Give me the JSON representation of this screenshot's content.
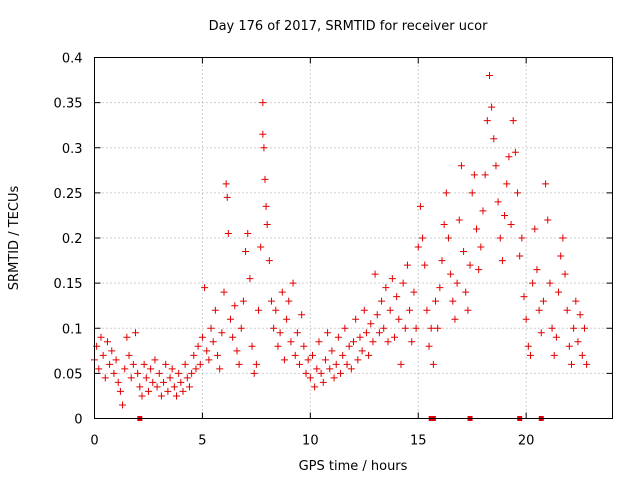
{
  "chart_data": {
    "type": "scatter",
    "title": "Day 176 of 2017, SRMTID for receiver ucor",
    "xlabel": "GPS time / hours",
    "ylabel": "SRMTID / TECUs",
    "xlim": [
      0,
      24
    ],
    "ylim": [
      0,
      0.4
    ],
    "xticks": [
      0,
      5,
      10,
      15,
      20
    ],
    "xtick_labels": [
      "0",
      "5",
      "10",
      "15",
      "20"
    ],
    "yticks": [
      0,
      0.05,
      0.1,
      0.15,
      0.2,
      0.25,
      0.3,
      0.35,
      0.4
    ],
    "ytick_labels": [
      "0",
      "0.05",
      "0.1",
      "0.15",
      "0.2",
      "0.25",
      "0.3",
      "0.35",
      "0.4"
    ],
    "grid": true,
    "marker": "+",
    "color": "#e00000",
    "series": [
      {
        "name": "SRMTID",
        "points": [
          [
            0.0,
            0.065
          ],
          [
            0.1,
            0.08
          ],
          [
            0.2,
            0.055
          ],
          [
            0.3,
            0.09
          ],
          [
            0.4,
            0.07
          ],
          [
            0.5,
            0.045
          ],
          [
            0.6,
            0.085
          ],
          [
            0.7,
            0.06
          ],
          [
            0.8,
            0.075
          ],
          [
            0.9,
            0.05
          ],
          [
            1.0,
            0.065
          ],
          [
            1.1,
            0.04
          ],
          [
            1.2,
            0.03
          ],
          [
            1.3,
            0.015
          ],
          [
            1.4,
            0.055
          ],
          [
            1.5,
            0.09
          ],
          [
            1.6,
            0.07
          ],
          [
            1.7,
            0.045
          ],
          [
            1.8,
            0.06
          ],
          [
            1.9,
            0.095
          ],
          [
            2.0,
            0.05
          ],
          [
            2.1,
            0.035
          ],
          [
            2.2,
            0.025
          ],
          [
            2.3,
            0.06
          ],
          [
            2.4,
            0.045
          ],
          [
            2.5,
            0.03
          ],
          [
            2.6,
            0.055
          ],
          [
            2.7,
            0.04
          ],
          [
            2.8,
            0.065
          ],
          [
            2.9,
            0.035
          ],
          [
            3.0,
            0.05
          ],
          [
            3.1,
            0.025
          ],
          [
            3.2,
            0.04
          ],
          [
            3.3,
            0.06
          ],
          [
            3.4,
            0.03
          ],
          [
            3.5,
            0.045
          ],
          [
            3.6,
            0.055
          ],
          [
            3.7,
            0.035
          ],
          [
            3.8,
            0.025
          ],
          [
            3.9,
            0.05
          ],
          [
            4.0,
            0.04
          ],
          [
            4.1,
            0.03
          ],
          [
            4.2,
            0.06
          ],
          [
            4.3,
            0.045
          ],
          [
            4.4,
            0.035
          ],
          [
            4.5,
            0.05
          ],
          [
            4.6,
            0.07
          ],
          [
            4.7,
            0.055
          ],
          [
            4.8,
            0.08
          ],
          [
            4.9,
            0.06
          ],
          [
            5.0,
            0.09
          ],
          [
            5.1,
            0.145
          ],
          [
            5.2,
            0.075
          ],
          [
            5.3,
            0.065
          ],
          [
            5.4,
            0.1
          ],
          [
            5.5,
            0.085
          ],
          [
            5.6,
            0.12
          ],
          [
            5.7,
            0.07
          ],
          [
            5.8,
            0.055
          ],
          [
            5.9,
            0.095
          ],
          [
            6.0,
            0.14
          ],
          [
            6.1,
            0.26
          ],
          [
            6.15,
            0.245
          ],
          [
            6.2,
            0.205
          ],
          [
            6.3,
            0.11
          ],
          [
            6.4,
            0.09
          ],
          [
            6.5,
            0.125
          ],
          [
            6.6,
            0.075
          ],
          [
            6.7,
            0.06
          ],
          [
            6.8,
            0.1
          ],
          [
            6.9,
            0.13
          ],
          [
            7.0,
            0.185
          ],
          [
            7.1,
            0.205
          ],
          [
            7.2,
            0.155
          ],
          [
            7.3,
            0.08
          ],
          [
            7.4,
            0.05
          ],
          [
            7.5,
            0.06
          ],
          [
            7.6,
            0.12
          ],
          [
            7.7,
            0.19
          ],
          [
            7.8,
            0.35
          ],
          [
            7.8,
            0.315
          ],
          [
            7.85,
            0.3
          ],
          [
            7.9,
            0.265
          ],
          [
            7.95,
            0.235
          ],
          [
            8.0,
            0.215
          ],
          [
            8.1,
            0.175
          ],
          [
            8.2,
            0.13
          ],
          [
            8.3,
            0.1
          ],
          [
            8.4,
            0.12
          ],
          [
            8.5,
            0.08
          ],
          [
            8.6,
            0.095
          ],
          [
            8.7,
            0.14
          ],
          [
            8.8,
            0.065
          ],
          [
            8.9,
            0.11
          ],
          [
            9.0,
            0.13
          ],
          [
            9.1,
            0.085
          ],
          [
            9.2,
            0.15
          ],
          [
            9.3,
            0.07
          ],
          [
            9.4,
            0.095
          ],
          [
            9.5,
            0.06
          ],
          [
            9.6,
            0.115
          ],
          [
            9.7,
            0.08
          ],
          [
            9.8,
            0.05
          ],
          [
            9.9,
            0.065
          ],
          [
            10.0,
            0.045
          ],
          [
            10.1,
            0.07
          ],
          [
            10.2,
            0.035
          ],
          [
            10.3,
            0.055
          ],
          [
            10.4,
            0.085
          ],
          [
            10.5,
            0.05
          ],
          [
            10.6,
            0.04
          ],
          [
            10.7,
            0.065
          ],
          [
            10.8,
            0.095
          ],
          [
            10.9,
            0.055
          ],
          [
            11.0,
            0.075
          ],
          [
            11.1,
            0.045
          ],
          [
            11.2,
            0.06
          ],
          [
            11.3,
            0.09
          ],
          [
            11.4,
            0.05
          ],
          [
            11.5,
            0.07
          ],
          [
            11.6,
            0.1
          ],
          [
            11.7,
            0.06
          ],
          [
            11.8,
            0.08
          ],
          [
            11.9,
            0.055
          ],
          [
            12.0,
            0.085
          ],
          [
            12.1,
            0.11
          ],
          [
            12.2,
            0.065
          ],
          [
            12.3,
            0.09
          ],
          [
            12.4,
            0.075
          ],
          [
            12.5,
            0.12
          ],
          [
            12.6,
            0.095
          ],
          [
            12.7,
            0.07
          ],
          [
            12.8,
            0.105
          ],
          [
            12.9,
            0.085
          ],
          [
            13.0,
            0.16
          ],
          [
            13.1,
            0.115
          ],
          [
            13.2,
            0.095
          ],
          [
            13.3,
            0.13
          ],
          [
            13.4,
            0.1
          ],
          [
            13.5,
            0.145
          ],
          [
            13.6,
            0.085
          ],
          [
            13.7,
            0.12
          ],
          [
            13.8,
            0.155
          ],
          [
            13.9,
            0.09
          ],
          [
            14.0,
            0.135
          ],
          [
            14.1,
            0.11
          ],
          [
            14.2,
            0.06
          ],
          [
            14.3,
            0.15
          ],
          [
            14.4,
            0.1
          ],
          [
            14.5,
            0.17
          ],
          [
            14.6,
            0.12
          ],
          [
            14.7,
            0.085
          ],
          [
            14.8,
            0.14
          ],
          [
            14.9,
            0.1
          ],
          [
            15.0,
            0.19
          ],
          [
            15.1,
            0.235
          ],
          [
            15.2,
            0.2
          ],
          [
            15.3,
            0.17
          ],
          [
            15.4,
            0.12
          ],
          [
            15.5,
            0.08
          ],
          [
            15.6,
            0.1
          ],
          [
            15.7,
            0.06
          ],
          [
            15.8,
            0.13
          ],
          [
            15.9,
            0.1
          ],
          [
            16.0,
            0.145
          ],
          [
            16.1,
            0.175
          ],
          [
            16.2,
            0.215
          ],
          [
            16.3,
            0.25
          ],
          [
            16.4,
            0.2
          ],
          [
            16.5,
            0.16
          ],
          [
            16.6,
            0.13
          ],
          [
            16.7,
            0.11
          ],
          [
            16.8,
            0.15
          ],
          [
            16.9,
            0.22
          ],
          [
            17.0,
            0.28
          ],
          [
            17.1,
            0.185
          ],
          [
            17.2,
            0.14
          ],
          [
            17.3,
            0.12
          ],
          [
            17.4,
            0.17
          ],
          [
            17.5,
            0.25
          ],
          [
            17.6,
            0.27
          ],
          [
            17.7,
            0.21
          ],
          [
            17.8,
            0.165
          ],
          [
            17.9,
            0.19
          ],
          [
            18.0,
            0.23
          ],
          [
            18.1,
            0.27
          ],
          [
            18.2,
            0.33
          ],
          [
            18.3,
            0.38
          ],
          [
            18.4,
            0.345
          ],
          [
            18.5,
            0.31
          ],
          [
            18.6,
            0.28
          ],
          [
            18.7,
            0.24
          ],
          [
            18.8,
            0.2
          ],
          [
            18.9,
            0.175
          ],
          [
            19.0,
            0.225
          ],
          [
            19.1,
            0.26
          ],
          [
            19.2,
            0.29
          ],
          [
            19.3,
            0.215
          ],
          [
            19.4,
            0.33
          ],
          [
            19.5,
            0.295
          ],
          [
            19.6,
            0.25
          ],
          [
            19.7,
            0.18
          ],
          [
            19.8,
            0.2
          ],
          [
            19.9,
            0.135
          ],
          [
            20.0,
            0.11
          ],
          [
            20.1,
            0.08
          ],
          [
            20.2,
            0.07
          ],
          [
            20.3,
            0.15
          ],
          [
            20.4,
            0.21
          ],
          [
            20.5,
            0.165
          ],
          [
            20.6,
            0.12
          ],
          [
            20.7,
            0.095
          ],
          [
            20.8,
            0.13
          ],
          [
            20.9,
            0.26
          ],
          [
            21.0,
            0.22
          ],
          [
            21.1,
            0.15
          ],
          [
            21.2,
            0.1
          ],
          [
            21.3,
            0.07
          ],
          [
            21.4,
            0.09
          ],
          [
            21.5,
            0.14
          ],
          [
            21.6,
            0.18
          ],
          [
            21.7,
            0.2
          ],
          [
            21.8,
            0.16
          ],
          [
            21.9,
            0.12
          ],
          [
            22.0,
            0.08
          ],
          [
            22.1,
            0.06
          ],
          [
            22.2,
            0.1
          ],
          [
            22.3,
            0.13
          ],
          [
            22.4,
            0.085
          ],
          [
            22.5,
            0.115
          ],
          [
            22.6,
            0.07
          ],
          [
            22.7,
            0.1
          ],
          [
            22.8,
            0.06
          ]
        ]
      }
    ],
    "zero_points_x": [
      2.1,
      15.6,
      15.7,
      17.4,
      19.7,
      20.7
    ],
    "zero_marker": "filled-square"
  }
}
